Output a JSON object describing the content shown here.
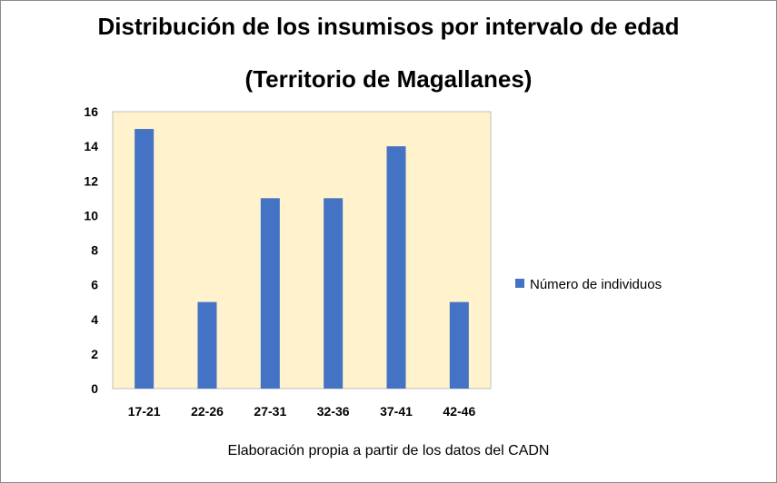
{
  "chart_data": {
    "type": "bar",
    "title": "Distribución de los insumisos por intervalo de edad",
    "subtitle": "(Territorio de Magallanes)",
    "categories": [
      "17-21",
      "22-26",
      "27-31",
      "32-36",
      "37-41",
      "42-46"
    ],
    "series": [
      {
        "name": "Número de individuos",
        "values": [
          15,
          5,
          11,
          11,
          14,
          5
        ],
        "color": "#4472c4"
      }
    ],
    "ylim": [
      0,
      16
    ],
    "yticks": [
      0,
      2,
      4,
      6,
      8,
      10,
      12,
      14,
      16
    ],
    "xlabel": "",
    "ylabel": "",
    "grid": false,
    "legend": "right",
    "plot_background": "#fff2cc",
    "source": "Elaboración propia a partir de los datos del CADN"
  }
}
